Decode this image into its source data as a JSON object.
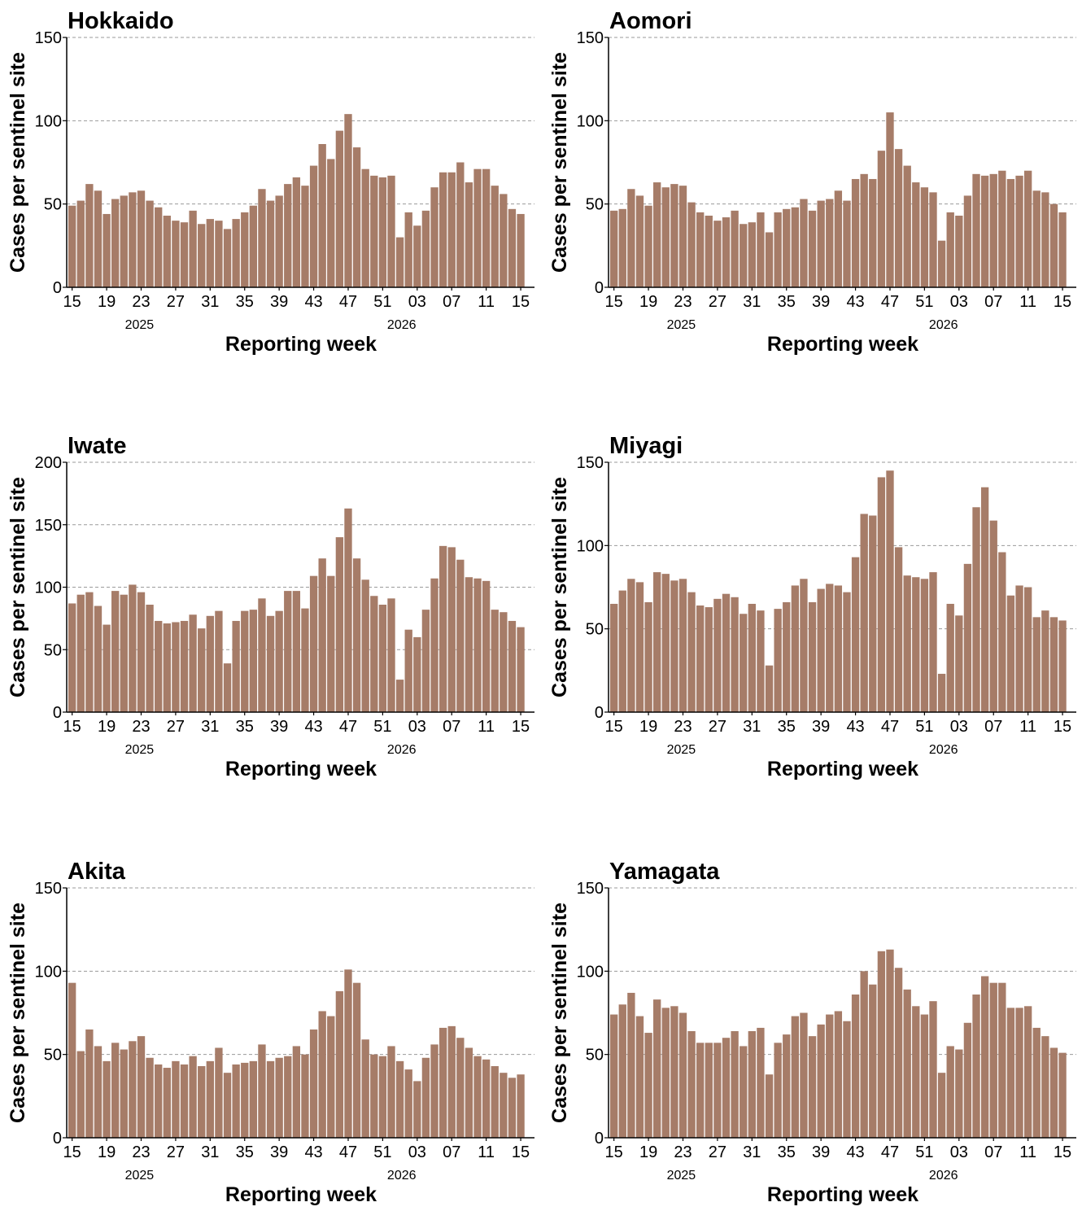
{
  "x_axis_label": "Reporting week",
  "y_axis_label": "Cases per sentinel site",
  "x_tick_labels": [
    "15",
    "19",
    "23",
    "27",
    "31",
    "35",
    "39",
    "43",
    "47",
    "51",
    "03",
    "07",
    "11",
    "15"
  ],
  "year_labels": [
    "2025",
    "2026"
  ],
  "colors": {
    "bar": "#a67c68",
    "grid": "#9a9a9a",
    "axis": "#000000"
  },
  "chart_data": [
    {
      "type": "bar",
      "title": "Hokkaido",
      "xlabel": "Reporting week",
      "ylabel": "Cases per sentinel site",
      "ylim": [
        0,
        150
      ],
      "yticks": [
        0,
        50,
        100,
        150
      ],
      "grid": "horizontal dashed",
      "weeks": [
        "15",
        "16",
        "17",
        "18",
        "19",
        "20",
        "21",
        "22",
        "23",
        "24",
        "25",
        "26",
        "27",
        "28",
        "29",
        "30",
        "31",
        "32",
        "33",
        "34",
        "35",
        "36",
        "37",
        "38",
        "39",
        "40",
        "41",
        "42",
        "43",
        "44",
        "45",
        "46",
        "47",
        "48",
        "49",
        "50",
        "51",
        "52",
        "01",
        "02",
        "03",
        "04",
        "05",
        "06",
        "07",
        "08",
        "09",
        "10",
        "11",
        "12",
        "13",
        "14",
        "15"
      ],
      "values": [
        49,
        52,
        62,
        58,
        44,
        53,
        55,
        57,
        58,
        52,
        48,
        43,
        40,
        39,
        46,
        38,
        41,
        40,
        35,
        41,
        45,
        49,
        59,
        52,
        55,
        62,
        66,
        61,
        73,
        86,
        77,
        94,
        104,
        84,
        71,
        67,
        66,
        67,
        30,
        45,
        37,
        46,
        60,
        69,
        69,
        75,
        63,
        71,
        71,
        61,
        56,
        47,
        44
      ]
    },
    {
      "type": "bar",
      "title": "Aomori",
      "xlabel": "Reporting week",
      "ylabel": "Cases per sentinel site",
      "ylim": [
        0,
        150
      ],
      "yticks": [
        0,
        50,
        100,
        150
      ],
      "grid": "horizontal dashed",
      "weeks": [
        "15",
        "16",
        "17",
        "18",
        "19",
        "20",
        "21",
        "22",
        "23",
        "24",
        "25",
        "26",
        "27",
        "28",
        "29",
        "30",
        "31",
        "32",
        "33",
        "34",
        "35",
        "36",
        "37",
        "38",
        "39",
        "40",
        "41",
        "42",
        "43",
        "44",
        "45",
        "46",
        "47",
        "48",
        "49",
        "50",
        "51",
        "52",
        "01",
        "02",
        "03",
        "04",
        "05",
        "06",
        "07",
        "08",
        "09",
        "10",
        "11",
        "12",
        "13",
        "14",
        "15"
      ],
      "values": [
        46,
        47,
        59,
        55,
        49,
        63,
        60,
        62,
        61,
        51,
        45,
        43,
        40,
        42,
        46,
        38,
        39,
        45,
        33,
        45,
        47,
        48,
        53,
        46,
        52,
        53,
        58,
        52,
        65,
        68,
        65,
        82,
        105,
        83,
        73,
        63,
        60,
        57,
        28,
        45,
        43,
        55,
        68,
        67,
        68,
        70,
        65,
        67,
        70,
        58,
        57,
        50,
        45
      ]
    },
    {
      "type": "bar",
      "title": "Iwate",
      "xlabel": "Reporting week",
      "ylabel": "Cases per sentinel site",
      "ylim": [
        0,
        200
      ],
      "yticks": [
        0,
        50,
        100,
        150,
        200
      ],
      "grid": "horizontal dashed",
      "weeks": [
        "15",
        "16",
        "17",
        "18",
        "19",
        "20",
        "21",
        "22",
        "23",
        "24",
        "25",
        "26",
        "27",
        "28",
        "29",
        "30",
        "31",
        "32",
        "33",
        "34",
        "35",
        "36",
        "37",
        "38",
        "39",
        "40",
        "41",
        "42",
        "43",
        "44",
        "45",
        "46",
        "47",
        "48",
        "49",
        "50",
        "51",
        "52",
        "01",
        "02",
        "03",
        "04",
        "05",
        "06",
        "07",
        "08",
        "09",
        "10",
        "11",
        "12",
        "13",
        "14",
        "15"
      ],
      "values": [
        87,
        94,
        96,
        85,
        70,
        97,
        94,
        102,
        96,
        86,
        73,
        71,
        72,
        73,
        78,
        67,
        77,
        81,
        39,
        73,
        81,
        82,
        91,
        77,
        81,
        97,
        97,
        83,
        109,
        123,
        109,
        140,
        163,
        123,
        106,
        93,
        86,
        91,
        26,
        66,
        60,
        82,
        107,
        133,
        132,
        122,
        108,
        107,
        105,
        82,
        80,
        73,
        68
      ]
    },
    {
      "type": "bar",
      "title": "Miyagi",
      "xlabel": "Reporting week",
      "ylabel": "Cases per sentinel site",
      "ylim": [
        0,
        150
      ],
      "yticks": [
        0,
        50,
        100,
        150
      ],
      "grid": "horizontal dashed",
      "weeks": [
        "15",
        "16",
        "17",
        "18",
        "19",
        "20",
        "21",
        "22",
        "23",
        "24",
        "25",
        "26",
        "27",
        "28",
        "29",
        "30",
        "31",
        "32",
        "33",
        "34",
        "35",
        "36",
        "37",
        "38",
        "39",
        "40",
        "41",
        "42",
        "43",
        "44",
        "45",
        "46",
        "47",
        "48",
        "49",
        "50",
        "51",
        "52",
        "01",
        "02",
        "03",
        "04",
        "05",
        "06",
        "07",
        "08",
        "09",
        "10",
        "11",
        "12",
        "13",
        "14",
        "15"
      ],
      "values": [
        65,
        73,
        80,
        78,
        66,
        84,
        83,
        79,
        80,
        72,
        64,
        63,
        68,
        71,
        69,
        59,
        65,
        61,
        28,
        62,
        66,
        76,
        80,
        66,
        74,
        77,
        76,
        72,
        93,
        119,
        118,
        141,
        145,
        99,
        82,
        81,
        80,
        84,
        23,
        65,
        58,
        89,
        123,
        135,
        115,
        96,
        70,
        76,
        75,
        57,
        61,
        57,
        55
      ]
    },
    {
      "type": "bar",
      "title": "Akita",
      "xlabel": "Reporting week",
      "ylabel": "Cases per sentinel site",
      "ylim": [
        0,
        150
      ],
      "yticks": [
        0,
        50,
        100,
        150
      ],
      "grid": "horizontal dashed",
      "weeks": [
        "15",
        "16",
        "17",
        "18",
        "19",
        "20",
        "21",
        "22",
        "23",
        "24",
        "25",
        "26",
        "27",
        "28",
        "29",
        "30",
        "31",
        "32",
        "33",
        "34",
        "35",
        "36",
        "37",
        "38",
        "39",
        "40",
        "41",
        "42",
        "43",
        "44",
        "45",
        "46",
        "47",
        "48",
        "49",
        "50",
        "51",
        "52",
        "01",
        "02",
        "03",
        "04",
        "05",
        "06",
        "07",
        "08",
        "09",
        "10",
        "11",
        "12",
        "13",
        "14",
        "15"
      ],
      "values": [
        93,
        52,
        65,
        55,
        46,
        57,
        53,
        58,
        61,
        48,
        44,
        42,
        46,
        44,
        49,
        43,
        46,
        54,
        39,
        44,
        45,
        46,
        56,
        46,
        48,
        49,
        55,
        50,
        65,
        76,
        73,
        88,
        101,
        93,
        59,
        50,
        49,
        55,
        46,
        41,
        34,
        48,
        56,
        66,
        67,
        60,
        54,
        49,
        47,
        43,
        39,
        36,
        38
      ]
    },
    {
      "type": "bar",
      "title": "Yamagata",
      "xlabel": "Reporting week",
      "ylabel": "Cases per sentinel site",
      "ylim": [
        0,
        150
      ],
      "yticks": [
        0,
        50,
        100,
        150
      ],
      "grid": "horizontal dashed",
      "weeks": [
        "15",
        "16",
        "17",
        "18",
        "19",
        "20",
        "21",
        "22",
        "23",
        "24",
        "25",
        "26",
        "27",
        "28",
        "29",
        "30",
        "31",
        "32",
        "33",
        "34",
        "35",
        "36",
        "37",
        "38",
        "39",
        "40",
        "41",
        "42",
        "43",
        "44",
        "45",
        "46",
        "47",
        "48",
        "49",
        "50",
        "51",
        "52",
        "01",
        "02",
        "03",
        "04",
        "05",
        "06",
        "07",
        "08",
        "09",
        "10",
        "11",
        "12",
        "13",
        "14",
        "15"
      ],
      "values": [
        74,
        80,
        87,
        73,
        63,
        83,
        78,
        79,
        75,
        64,
        57,
        57,
        57,
        60,
        64,
        55,
        64,
        66,
        38,
        57,
        62,
        73,
        75,
        61,
        68,
        74,
        76,
        70,
        86,
        100,
        92,
        112,
        113,
        102,
        89,
        79,
        74,
        82,
        39,
        55,
        53,
        69,
        86,
        97,
        93,
        93,
        78,
        78,
        79,
        66,
        61,
        54,
        51
      ]
    }
  ]
}
